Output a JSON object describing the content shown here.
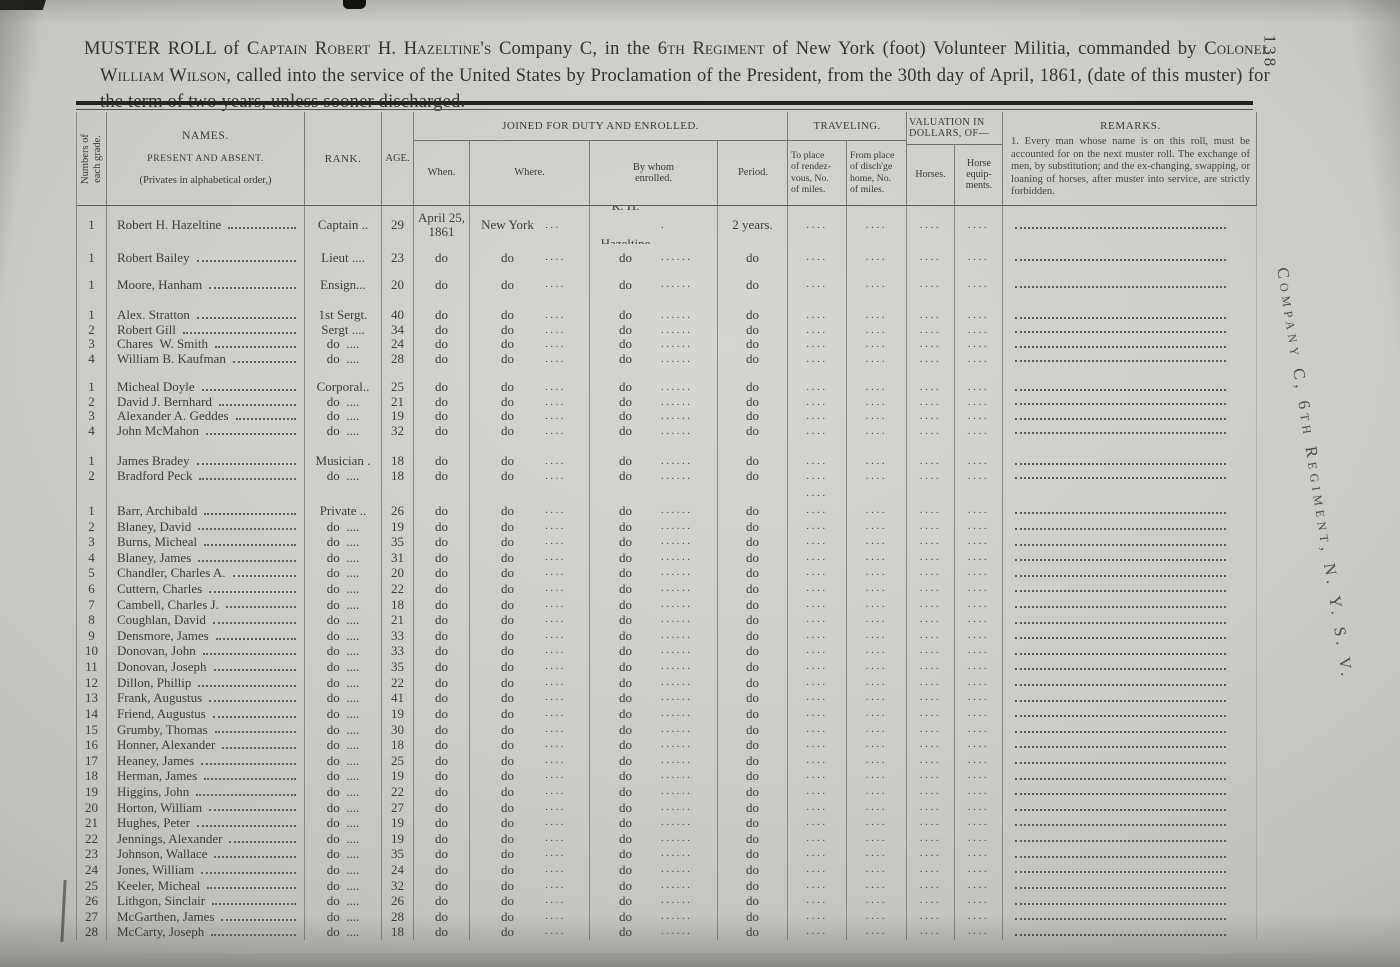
{
  "page": {
    "number": "138",
    "side_label": "Company C, 6th Regiment, N. Y. S. V."
  },
  "title": {
    "segments": [
      {
        "style": "plain",
        "text": "MUSTER ROLL"
      },
      {
        "style": "plain",
        "text": " of "
      },
      {
        "style": "sc",
        "text": "Captain Robert H. Hazeltine's"
      },
      {
        "style": "plain",
        "text": " Company C, in the "
      },
      {
        "style": "sc",
        "text": "6th Regiment"
      },
      {
        "style": "plain",
        "text": " of New York (foot) Volunteer Militia, commanded by "
      },
      {
        "style": "sc",
        "text": "Colonel William Wilson"
      },
      {
        "style": "plain",
        "text": ", called into the service of the United States by Proclamation of the President, from the 30th day of April, 1861, (date of this muster) for the term of two years, unless sooner discharged."
      }
    ]
  },
  "header": {
    "numbers": "Numbers of\neach grade.",
    "names_title": "NAMES.",
    "names_sub1": "PRESENT AND ABSENT.",
    "names_sub2": "(Privates in alphabetical order,)",
    "rank": "RANK.",
    "age": "AGE.",
    "joined_group": "JOINED FOR DUTY AND ENROLLED.",
    "when": "When.",
    "where": "Where.",
    "by_whom": "By whom\nenrolled.",
    "period": "Period.",
    "traveling_group": "TRAVELING.",
    "to_place": "To place\nof rendez-\nvous, No.\nof miles.",
    "from_place": "From place\nof disch'ge\nhome, No.\nof miles.",
    "valuation_group": "VALUATION IN\nDOLLARS, OF—",
    "horses": "Horses.",
    "equipments": "Horse\nequip-\nments.",
    "remarks_title": "REMARKS.",
    "remarks_note": "1. Every man whose name is on this roll, must be accounted for on the next muster roll.  The exchange of men, by substitution; and the ex-changing, swapping, or loaning of horses, after muster into service, are strictly forbidden."
  },
  "table": {
    "defaults": {
      "when": "do",
      "where": "do",
      "where_dots": "....",
      "by": "do",
      "by_dots": "......",
      "period": "do",
      "travel_dots": "...."
    },
    "groups": [
      {
        "name": "officers",
        "rows": [
          {
            "n": "1",
            "name": "Robert H. Hazeltine",
            "rank": "Captain ..",
            "age": "29",
            "when": "April 25,\n1861",
            "where": "New York",
            "where_dots": "...",
            "by": "R. H. Hazeltine",
            "by_dots": ".",
            "period": "2 years."
          },
          {
            "n": "1",
            "name": "Robert Bailey",
            "rank": "Lieut ....",
            "age": "23"
          },
          {
            "n": "1",
            "name": "Moore, Hanham",
            "rank": "Ensign...",
            "age": "20"
          }
        ]
      },
      {
        "name": "sergeants",
        "rows": [
          {
            "n": "1",
            "name": "Alex. Stratton",
            "rank": "1st Sergt.",
            "age": "40"
          },
          {
            "n": "2",
            "name": "Robert Gill",
            "rank": "Sergt ....",
            "age": "34"
          },
          {
            "n": "3",
            "name": "Chares  W. Smith",
            "rank": "do  ....",
            "age": "24"
          },
          {
            "n": "4",
            "name": "William B. Kaufman",
            "rank": "do  ....",
            "age": "28"
          }
        ]
      },
      {
        "name": "corporals",
        "rows": [
          {
            "n": "1",
            "name": "Micheal Doyle",
            "rank": "Corporal..",
            "age": "25"
          },
          {
            "n": "2",
            "name": "David J. Bernhard",
            "rank": "do  ....",
            "age": "21"
          },
          {
            "n": "3",
            "name": "Alexander A. Geddes",
            "rank": "do  ....",
            "age": "19"
          },
          {
            "n": "4",
            "name": "John McMahon",
            "rank": "do  ....",
            "age": "32"
          }
        ]
      },
      {
        "name": "musicians",
        "gap_dots": true,
        "rows": [
          {
            "n": "1",
            "name": "James Bradey",
            "rank": "Musician .",
            "age": "18"
          },
          {
            "n": "2",
            "name": "Bradford Peck",
            "rank": "do  ....",
            "age": "18"
          }
        ]
      },
      {
        "name": "privates",
        "rows": [
          {
            "n": "1",
            "name": "Barr, Archibald",
            "rank": "Private ..",
            "age": "26"
          },
          {
            "n": "2",
            "name": "Blaney, David",
            "rank": "do  ....",
            "age": "19"
          },
          {
            "n": "3",
            "name": "Burns, Micheal",
            "rank": "do  ....",
            "age": "35"
          },
          {
            "n": "4",
            "name": "Blaney, James",
            "rank": "do  ....",
            "age": "31"
          },
          {
            "n": "5",
            "name": "Chandler, Charles A.",
            "rank": "do  ....",
            "age": "20"
          },
          {
            "n": "6",
            "name": "Cuttern, Charles",
            "rank": "do  ....",
            "age": "22"
          },
          {
            "n": "7",
            "name": "Cambell, Charles J.",
            "rank": "do  ....",
            "age": "18"
          },
          {
            "n": "8",
            "name": "Coughlan, David",
            "rank": "do  ....",
            "age": "21"
          },
          {
            "n": "9",
            "name": "Densmore, James",
            "rank": "do  ....",
            "age": "33"
          },
          {
            "n": "10",
            "name": "Donovan, John",
            "rank": "do  ....",
            "age": "33"
          },
          {
            "n": "11",
            "name": "Donovan, Joseph",
            "rank": "do  ....",
            "age": "35"
          },
          {
            "n": "12",
            "name": "Dillon, Phillip",
            "rank": "do  ....",
            "age": "22"
          },
          {
            "n": "13",
            "name": "Frank, Augustus",
            "rank": "do  ....",
            "age": "41"
          },
          {
            "n": "14",
            "name": "Friend, Augustus",
            "rank": "do  ....",
            "age": "19"
          },
          {
            "n": "15",
            "name": "Grumby, Thomas",
            "rank": "do  ....",
            "age": "30"
          },
          {
            "n": "16",
            "name": "Honner, Alexander",
            "rank": "do  ....",
            "age": "18"
          },
          {
            "n": "17",
            "name": "Heaney, James",
            "rank": "do  ....",
            "age": "25"
          },
          {
            "n": "18",
            "name": "Herman, James",
            "rank": "do  ....",
            "age": "19"
          },
          {
            "n": "19",
            "name": "Higgins, John",
            "rank": "do  ....",
            "age": "22"
          },
          {
            "n": "20",
            "name": "Horton, William",
            "rank": "do  ....",
            "age": "27"
          },
          {
            "n": "21",
            "name": "Hughes, Peter",
            "rank": "do  ....",
            "age": "19"
          },
          {
            "n": "22",
            "name": "Jennings, Alexander",
            "rank": "do  ....",
            "age": "19"
          },
          {
            "n": "23",
            "name": "Johnson, Wallace",
            "rank": "do  ....",
            "age": "35"
          },
          {
            "n": "24",
            "name": "Jones, William",
            "rank": "do  ....",
            "age": "24"
          },
          {
            "n": "25",
            "name": "Keeler, Micheal",
            "rank": "do  ....",
            "age": "32"
          },
          {
            "n": "26",
            "name": "Lithgon, Sinclair",
            "rank": "do  ....",
            "age": "26"
          },
          {
            "n": "27",
            "name": "McGarthen, James",
            "rank": "do  ....",
            "age": "28"
          },
          {
            "n": "28",
            "name": "McCarty, Joseph",
            "rank": "do  ....",
            "age": "18"
          }
        ]
      }
    ]
  }
}
